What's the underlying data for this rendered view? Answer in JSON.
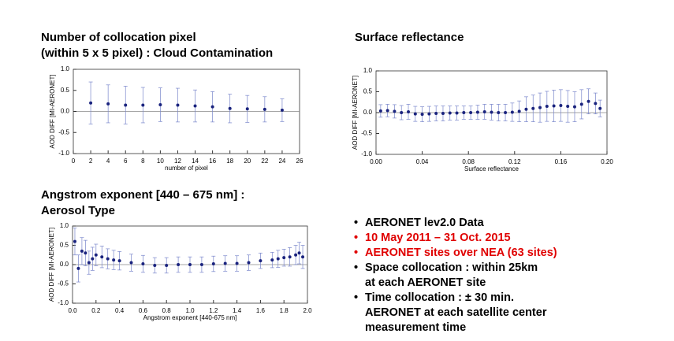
{
  "chart_data": [
    {
      "type": "scatter",
      "title": [
        "Number of collocation pixel",
        "(within 5 x 5 pixel) : Cloud Contamination"
      ],
      "x_label": "number of pixel",
      "y_label": "AOD DIFF [MI-AERONET]",
      "color": "#1a237e",
      "x": [
        2,
        4,
        6,
        8,
        10,
        12,
        14,
        16,
        18,
        20,
        22,
        24
      ],
      "values": [
        0.2,
        0.18,
        0.15,
        0.15,
        0.16,
        0.15,
        0.13,
        0.11,
        0.07,
        0.06,
        0.05,
        0.03
      ],
      "errors": [
        0.5,
        0.45,
        0.45,
        0.42,
        0.4,
        0.4,
        0.38,
        0.36,
        0.34,
        0.32,
        0.3,
        0.27
      ],
      "xlim": [
        0,
        26
      ],
      "xticks": [
        0,
        2,
        4,
        6,
        8,
        10,
        12,
        14,
        16,
        18,
        20,
        22,
        24,
        26
      ],
      "ylim": [
        -1,
        1
      ],
      "yticks": [
        {
          "value": -1,
          "label": "-1.0"
        },
        -0.5,
        {
          "value": 0,
          "label": "0.0"
        },
        0.5,
        {
          "value": 1,
          "label": "1.0"
        }
      ]
    },
    {
      "type": "scatter",
      "title": [
        "Surface reflectance"
      ],
      "x_label": "Surface reflectance",
      "y_label": "AOD DIFF [MI-AERONET]",
      "color": "#1a237e",
      "x": [
        0.004,
        0.01,
        0.016,
        0.022,
        0.028,
        0.034,
        0.04,
        0.046,
        0.052,
        0.058,
        0.064,
        0.07,
        0.076,
        0.082,
        0.088,
        0.094,
        0.1,
        0.106,
        0.112,
        0.118,
        0.124,
        0.13,
        0.136,
        0.142,
        0.148,
        0.154,
        0.16,
        0.166,
        0.172,
        0.178,
        0.184,
        0.19,
        0.194
      ],
      "values": [
        0.04,
        0.05,
        0.03,
        0.0,
        0.02,
        -0.03,
        -0.04,
        -0.03,
        -0.02,
        -0.02,
        -0.01,
        -0.01,
        0.0,
        0.0,
        0.01,
        0.02,
        0.01,
        0.0,
        0.0,
        0.01,
        0.03,
        0.08,
        0.1,
        0.12,
        0.15,
        0.16,
        0.17,
        0.15,
        0.14,
        0.2,
        0.27,
        0.22,
        0.1
      ],
      "errors": [
        0.15,
        0.15,
        0.16,
        0.17,
        0.18,
        0.18,
        0.18,
        0.18,
        0.18,
        0.18,
        0.17,
        0.17,
        0.16,
        0.16,
        0.17,
        0.18,
        0.19,
        0.2,
        0.2,
        0.22,
        0.25,
        0.3,
        0.32,
        0.35,
        0.36,
        0.38,
        0.38,
        0.38,
        0.36,
        0.35,
        0.3,
        0.25,
        0.2
      ],
      "xlim": [
        0,
        0.2
      ],
      "xticks": [
        {
          "value": 0,
          "label": "0.00"
        },
        {
          "value": 0.04,
          "label": "0.04"
        },
        {
          "value": 0.08,
          "label": "0.08"
        },
        {
          "value": 0.12,
          "label": "0.12"
        },
        {
          "value": 0.16,
          "label": "0.16"
        },
        {
          "value": 0.2,
          "label": "0.20"
        }
      ],
      "ylim": [
        -1,
        1
      ],
      "yticks": [
        {
          "value": -1,
          "label": "-1.0"
        },
        -0.5,
        {
          "value": 0,
          "label": "0.0"
        },
        0.5,
        {
          "value": 1,
          "label": "1.0"
        }
      ]
    },
    {
      "type": "scatter",
      "title": [
        "Angstrom exponent [440 – 675 nm] :",
        "Aerosol Type"
      ],
      "x_label": "Angstrom exponent [440-675 nm]",
      "y_label": "AOD DIFF [MI-AERONET]",
      "color": "#1a237e",
      "x": [
        0.02,
        0.05,
        0.08,
        0.11,
        0.14,
        0.17,
        0.2,
        0.25,
        0.3,
        0.35,
        0.4,
        0.5,
        0.6,
        0.7,
        0.8,
        0.9,
        1.0,
        1.1,
        1.2,
        1.3,
        1.4,
        1.5,
        1.6,
        1.7,
        1.75,
        1.8,
        1.85,
        1.9,
        1.93,
        1.96
      ],
      "values": [
        0.6,
        -0.1,
        0.35,
        0.3,
        0.05,
        0.15,
        0.25,
        0.2,
        0.15,
        0.12,
        0.1,
        0.05,
        0.02,
        -0.02,
        -0.02,
        0.0,
        0.0,
        0.0,
        0.02,
        0.03,
        0.03,
        0.05,
        0.1,
        0.12,
        0.15,
        0.18,
        0.2,
        0.25,
        0.3,
        0.2
      ],
      "errors": [
        0.35,
        0.35,
        0.35,
        0.33,
        0.3,
        0.3,
        0.28,
        0.28,
        0.26,
        0.25,
        0.24,
        0.22,
        0.22,
        0.2,
        0.2,
        0.2,
        0.2,
        0.2,
        0.2,
        0.2,
        0.2,
        0.2,
        0.2,
        0.2,
        0.22,
        0.22,
        0.24,
        0.25,
        0.28,
        0.3
      ],
      "xlim": [
        0,
        2
      ],
      "xticks": [
        {
          "value": 0,
          "label": "0.0"
        },
        0.2,
        0.4,
        0.6,
        0.8,
        {
          "value": 1,
          "label": "1.0"
        },
        1.2,
        1.4,
        1.6,
        1.8,
        {
          "value": 2,
          "label": "2.0"
        }
      ],
      "ylim": [
        -1,
        1
      ],
      "yticks": [
        {
          "value": -1,
          "label": "-1.0"
        },
        -0.5,
        {
          "value": 0,
          "label": "0.0"
        },
        0.5,
        {
          "value": 1,
          "label": "1.0"
        }
      ]
    }
  ],
  "bullets": [
    {
      "lines": [
        "AERONET lev2.0 Data"
      ],
      "color": "#000000"
    },
    {
      "lines": [
        "10 May 2011 – 31 Oct. 2015"
      ],
      "color": "#e00000"
    },
    {
      "lines": [
        "AERONET sites over NEA (63 sites)"
      ],
      "color": "#e00000"
    },
    {
      "lines": [
        "Space collocation : within 25km",
        "at each AERONET site"
      ],
      "color": "#000000"
    },
    {
      "lines": [
        "Time collocation : ± 30 min.",
        "AERONET at each satellite center",
        "measurement time"
      ],
      "color": "#000000"
    }
  ]
}
